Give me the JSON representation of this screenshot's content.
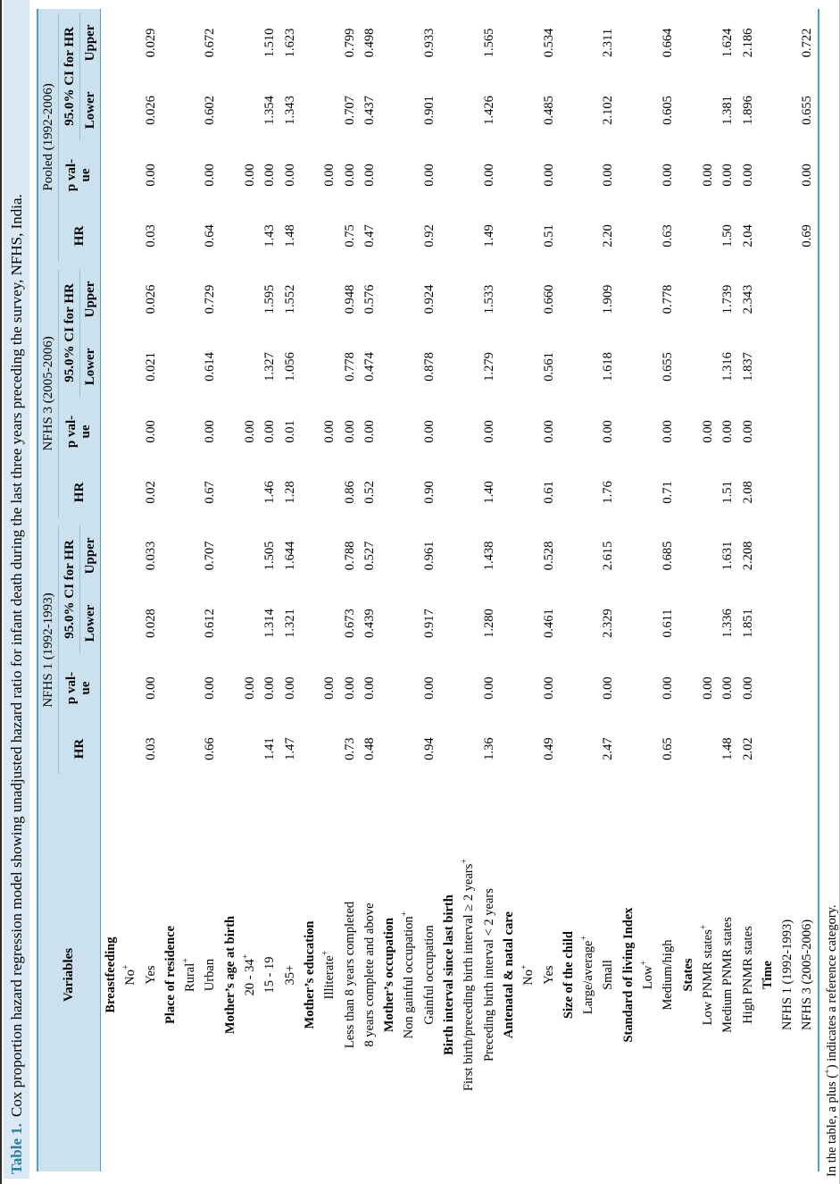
{
  "caption": {
    "label": "Table 1.",
    "text": "Cox proportion hazard regression model showing unadjusted hazard ratio for infant death during the last three years preceding the survey, NFHS, India."
  },
  "header": {
    "variables": "Variables",
    "surveys": [
      "NFHS 1 (1992-1993)",
      "NFHS 3 (2005-2006)",
      "Pooled (1992-2006)"
    ],
    "sub": {
      "hr": "HR",
      "p_line1": "p val-",
      "p_line2": "ue",
      "ci": "95.0% CI for HR",
      "lower": "Lower",
      "upper": "Upper"
    }
  },
  "rows": [
    {
      "type": "group",
      "label": "Breastfeeding"
    },
    {
      "type": "item",
      "label": "No",
      "ref": true
    },
    {
      "type": "item",
      "label": "Yes",
      "cells": [
        "0.03",
        "0.00",
        "0.028",
        "0.033",
        "0.02",
        "0.00",
        "0.021",
        "0.026",
        "0.03",
        "0.00",
        "0.026",
        "0.029"
      ]
    },
    {
      "type": "group",
      "label": "Place of residence"
    },
    {
      "type": "item",
      "label": "Rural",
      "ref": true
    },
    {
      "type": "item",
      "label": "Urban",
      "cells": [
        "0.66",
        "0.00",
        "0.612",
        "0.707",
        "0.67",
        "0.00",
        "0.614",
        "0.729",
        "0.64",
        "0.00",
        "0.602",
        "0.672"
      ]
    },
    {
      "type": "group",
      "label": "Mother’s age at birth"
    },
    {
      "type": "item",
      "label": "20 - 34",
      "ref": true,
      "cells": [
        "",
        "0.00",
        "",
        "",
        "",
        "0.00",
        "",
        "",
        "",
        "0.00",
        "",
        ""
      ]
    },
    {
      "type": "item",
      "label": "15 - 19",
      "cells": [
        "1.41",
        "0.00",
        "1.314",
        "1.505",
        "1.46",
        "0.00",
        "1.327",
        "1.595",
        "1.43",
        "0.00",
        "1.354",
        "1.510"
      ]
    },
    {
      "type": "item",
      "label": "35+",
      "cells": [
        "1.47",
        "0.00",
        "1.321",
        "1.644",
        "1.28",
        "0.01",
        "1.056",
        "1.552",
        "1.48",
        "0.00",
        "1.343",
        "1.623"
      ]
    },
    {
      "type": "group",
      "label": "Mother’s education"
    },
    {
      "type": "item",
      "label": "Illiterate",
      "ref": true,
      "cells": [
        "",
        "0.00",
        "",
        "",
        "",
        "0.00",
        "",
        "",
        "",
        "0.00",
        "",
        ""
      ]
    },
    {
      "type": "item",
      "label": "Less than 8 years completed",
      "cells": [
        "0.73",
        "0.00",
        "0.673",
        "0.788",
        "0.86",
        "0.00",
        "0.778",
        "0.948",
        "0.75",
        "0.00",
        "0.707",
        "0.799"
      ]
    },
    {
      "type": "item",
      "label": "8 years complete and above",
      "cells": [
        "0.48",
        "0.00",
        "0.439",
        "0.527",
        "0.52",
        "0.00",
        "0.474",
        "0.576",
        "0.47",
        "0.00",
        "0.437",
        "0.498"
      ]
    },
    {
      "type": "group",
      "label": "Mother’s occupation"
    },
    {
      "type": "item",
      "label": "Non gainful occupation",
      "ref": true
    },
    {
      "type": "item",
      "label": "Gainful occupation",
      "cells": [
        "0.94",
        "0.00",
        "0.917",
        "0.961",
        "0.90",
        "0.00",
        "0.878",
        "0.924",
        "0.92",
        "0.00",
        "0.901",
        "0.933"
      ]
    },
    {
      "type": "group",
      "label": "Birth interval since last birth"
    },
    {
      "type": "item",
      "label": "First birth/preceding birth interval ≥ 2 years",
      "ref": true
    },
    {
      "type": "item",
      "label": "Preceding birth interval < 2 years",
      "cells": [
        "1.36",
        "0.00",
        "1.280",
        "1.438",
        "1.40",
        "0.00",
        "1.279",
        "1.533",
        "1.49",
        "0.00",
        "1.426",
        "1.565"
      ]
    },
    {
      "type": "group",
      "label": "Antenatal & natal care"
    },
    {
      "type": "item",
      "label": "No",
      "ref": true
    },
    {
      "type": "item",
      "label": "Yes",
      "cells": [
        "0.49",
        "0.00",
        "0.461",
        "0.528",
        "0.61",
        "0.00",
        "0.561",
        "0.660",
        "0.51",
        "0.00",
        "0.485",
        "0.534"
      ]
    },
    {
      "type": "group",
      "label": "Size of the child"
    },
    {
      "type": "item",
      "label": "Large/average",
      "ref": true
    },
    {
      "type": "item",
      "label": "Small",
      "cells": [
        "2.47",
        "0.00",
        "2.329",
        "2.615",
        "1.76",
        "0.00",
        "1.618",
        "1.909",
        "2.20",
        "0.00",
        "2.102",
        "2.311"
      ]
    },
    {
      "type": "group",
      "label": "Standard of living Index"
    },
    {
      "type": "item",
      "label": "Low",
      "ref": true
    },
    {
      "type": "item",
      "label": "Medium/high",
      "cells": [
        "0.65",
        "0.00",
        "0.611",
        "0.685",
        "0.71",
        "0.00",
        "0.655",
        "0.778",
        "0.63",
        "0.00",
        "0.605",
        "0.664"
      ]
    },
    {
      "type": "group",
      "label": "States"
    },
    {
      "type": "item",
      "label": "Low PNMR states",
      "ref": true,
      "cells": [
        "",
        "0.00",
        "",
        "",
        "",
        "0.00",
        "",
        "",
        "",
        "0.00",
        "",
        ""
      ]
    },
    {
      "type": "item",
      "label": "Medium PNMR states",
      "cells": [
        "1.48",
        "0.00",
        "1.336",
        "1.631",
        "1.51",
        "0.00",
        "1.316",
        "1.739",
        "1.50",
        "0.00",
        "1.381",
        "1.624"
      ]
    },
    {
      "type": "item",
      "label": "High PNMR states",
      "cells": [
        "2.02",
        "0.00",
        "1.851",
        "2.208",
        "2.08",
        "0.00",
        "1.837",
        "2.343",
        "2.04",
        "0.00",
        "1.896",
        "2.186"
      ]
    },
    {
      "type": "group",
      "label": "Time"
    },
    {
      "type": "item",
      "label": "NFHS 1 (1992-1993)"
    },
    {
      "type": "item",
      "label": "NFHS 3 (2005-2006)",
      "cells": [
        "",
        "",
        "",
        "",
        "",
        "",
        "",
        "",
        "0.69",
        "0.00",
        "0.655",
        "0.722"
      ]
    }
  ],
  "footnote": {
    "pre": "In the table, a plus (",
    "sup": "+",
    "post": ") indicates a reference category."
  },
  "colors": {
    "accent_teal": "#4ba1c0",
    "caption_bg": "#d9e8f2",
    "caption_label": "#2a7fa1",
    "header_bg": "#cbe2ee",
    "divider": "#93bfd4"
  }
}
